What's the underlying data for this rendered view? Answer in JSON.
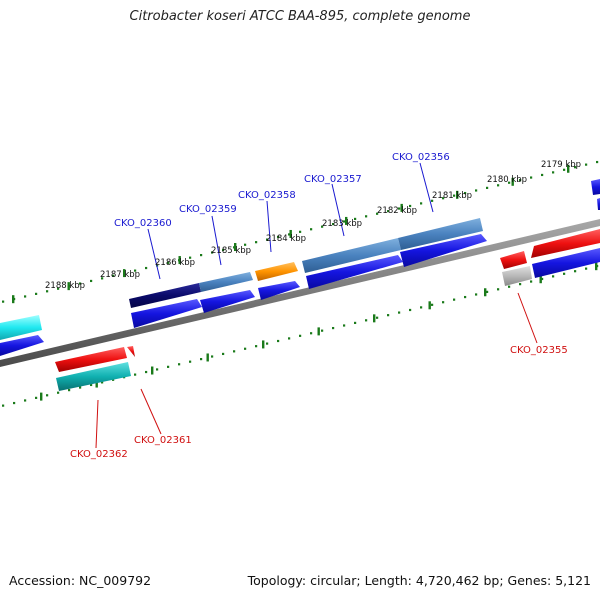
{
  "title": "Citrobacter koseri ATCC BAA-895, complete genome",
  "accession": "Accession: NC_009792",
  "summary": "Topology: circular; Length: 4,720,462 bp; Genes: 5,121",
  "colors": {
    "forward_cds": "#1a1ae0",
    "reverse_cds": "#e01010",
    "label_forward": "#1a1ad0",
    "label_reverse": "#d01010",
    "tick": "#1a7a1a",
    "backbone": "#777777"
  },
  "scale_labels": [
    "2188 kbp",
    "2187 kbp",
    "2186 kbp",
    "2185 kbp",
    "2184 kbp",
    "2183 kbp",
    "2182 kbp",
    "2181 kbp",
    "2180 kbp",
    "2179 kbp"
  ],
  "gene_labels": {
    "top": [
      "CKO_02360",
      "CKO_02359",
      "CKO_02358",
      "CKO_02357",
      "CKO_02356"
    ],
    "bottom": [
      "CKO_02362",
      "CKO_02361",
      "CKO_02355"
    ]
  }
}
